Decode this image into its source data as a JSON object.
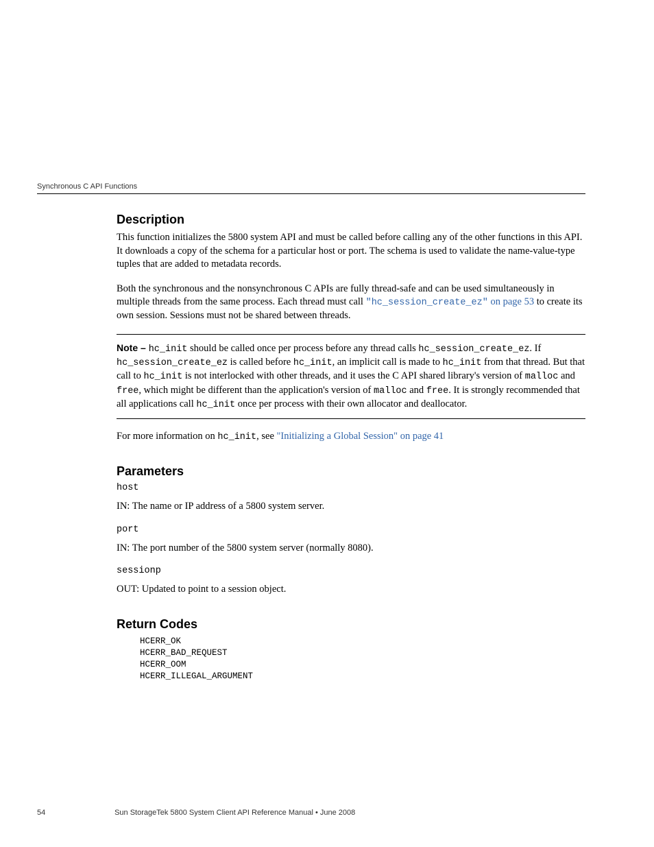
{
  "header": {
    "running_head": "Synchronous C API Functions"
  },
  "sections": {
    "description": {
      "title": "Description",
      "p1": "This function initializes the 5800 system API and must be called before calling any of the other functions in this API. It downloads a copy of the schema for a particular host or port. The schema is used to validate the name-value-type tuples that are added to metadata records.",
      "p2_pre": "Both the synchronous and the nonsynchronous C APIs are fully thread-safe and can be used simultaneously in multiple threads from the same process. Each thread must call ",
      "p2_link_code": "\"hc_session_create_ez\"",
      "p2_link_tail": " on page 53",
      "p2_post": " to create its own session. Sessions must not be shared between threads.",
      "note_label": "Note – ",
      "note_a": " should be called once per process before any thread calls ",
      "note_b": ". If ",
      "note_c": " is called before ",
      "note_d": ", an implicit call is made to ",
      "note_e": " from that thread. But that call to ",
      "note_f": " is not interlocked with other threads, and it uses the C API shared library's version of ",
      "note_g": " and ",
      "note_h": ", which might be different than the application's version of ",
      "note_i": " and ",
      "note_j": ". It is strongly recommended that all applications call ",
      "note_k": " once per process with their own allocator and deallocator.",
      "code_hc_init": "hc_init",
      "code_sess": "hc_session_create_ez",
      "code_malloc": "malloc",
      "code_free": "free",
      "more_pre": "For more information on ",
      "more_mid": ", see ",
      "more_link": "\"Initializing a Global Session\" on page 41"
    },
    "parameters": {
      "title": "Parameters",
      "items": [
        {
          "name": "host",
          "desc": "IN: The name or IP address of a 5800 system server."
        },
        {
          "name": "port",
          "desc": "IN: The port number of the 5800 system server (normally 8080)."
        },
        {
          "name": "sessionp",
          "desc": "OUT: Updated to point to a session object."
        }
      ]
    },
    "return_codes": {
      "title": "Return Codes",
      "codes": "HCERR_OK\nHCERR_BAD_REQUEST\nHCERR_OOM\nHCERR_ILLEGAL_ARGUMENT"
    }
  },
  "footer": {
    "page_number": "54",
    "doc_title": "Sun StorageTek 5800 System Client API Reference Manual  •  June 2008"
  },
  "colors": {
    "link": "#3366aa",
    "text": "#000000",
    "bg": "#ffffff"
  }
}
